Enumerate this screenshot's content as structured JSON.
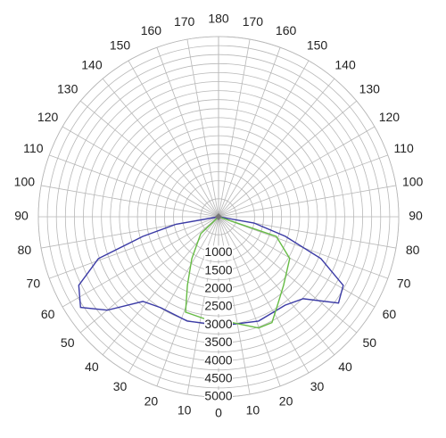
{
  "chart_data": {
    "type": "polar",
    "rlim": [
      0,
      5000
    ],
    "rticks": [
      1000,
      1500,
      2000,
      2500,
      3000,
      3500,
      4000,
      4500,
      5000
    ],
    "angle_ticks": [
      0,
      10,
      20,
      30,
      40,
      50,
      60,
      70,
      80,
      90,
      100,
      110,
      120,
      130,
      140,
      150,
      160,
      170,
      180
    ],
    "grid": true,
    "series": [
      {
        "color": "#3b3ba6",
        "theta": [
          -90,
          -80,
          -75.5,
          -70.8,
          -63.9,
          -56.7,
          -50,
          -41.8,
          -32.5,
          -16.7,
          2.3,
          21,
          37,
          45.9,
          54.3,
          61.2,
          67.8,
          73.7,
          80,
          90
        ],
        "values": [
          0,
          1200,
          2170,
          3530,
          4320,
          4580,
          4030,
          3150,
          2990,
          3020,
          3020,
          3100,
          3070,
          3270,
          4100,
          3950,
          3070,
          1930,
          1000,
          0
        ]
      },
      {
        "color": "#66bb44",
        "theta": [
          -90,
          -46.5,
          -32.5,
          -24.4,
          -19.1,
          -7.4,
          7.2,
          19.8,
          26.8,
          34.6,
          43.5,
          59.6,
          71.3,
          90
        ],
        "values": [
          0,
          680,
          1380,
          2090,
          2800,
          2860,
          2960,
          3280,
          3290,
          2910,
          2620,
          2290,
          1690,
          0
        ]
      }
    ]
  }
}
